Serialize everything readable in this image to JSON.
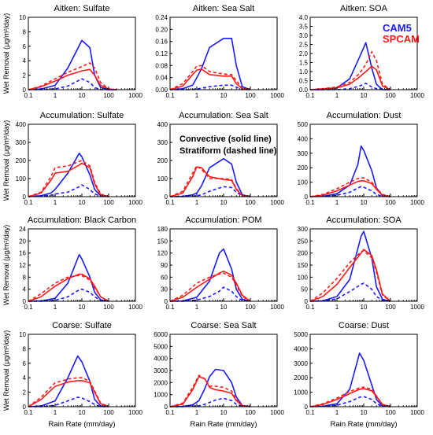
{
  "figure": {
    "ylabel": "Wet Removal (μg/m²/day)",
    "xlabel": "Rain Rate (mm/day)",
    "legend": {
      "cam5": "CAM5",
      "spcam": "SPCAM"
    },
    "note": {
      "line1": "Convective (solid line)",
      "line2": "Stratiform (dashed line)"
    },
    "colors": {
      "cam5": "#1a1aff",
      "spcam": "#ff1a1a"
    },
    "x_ticks": [
      "0.1",
      "1",
      "10",
      "100",
      "1000"
    ]
  },
  "chart_data": [
    {
      "type": "line",
      "title": "Aitken: Sulfate",
      "xscale": "log",
      "xlim": [
        0.1,
        1000
      ],
      "ylim": [
        0,
        10
      ],
      "y_ticks": [
        "0",
        "2",
        "4",
        "6",
        "8",
        "10"
      ],
      "x": [
        0.1,
        0.3,
        1,
        3,
        10,
        20,
        30,
        50,
        100,
        200
      ],
      "series": [
        {
          "name": "CAM5",
          "style": "solid",
          "values": [
            0,
            0.1,
            0.6,
            3.0,
            6.8,
            5.8,
            2.0,
            0.3,
            0,
            0
          ]
        },
        {
          "name": "CAM5",
          "style": "dashed",
          "values": [
            0,
            0,
            0.1,
            0.5,
            1.5,
            1.0,
            0.3,
            0,
            0,
            0
          ]
        },
        {
          "name": "SPCAM",
          "style": "solid",
          "values": [
            0,
            0.4,
            1.2,
            2.0,
            2.6,
            2.8,
            2.0,
            0.6,
            0.1,
            0
          ]
        },
        {
          "name": "SPCAM",
          "style": "dashed",
          "values": [
            0,
            0.5,
            1.5,
            2.4,
            3.2,
            3.7,
            3.0,
            1.0,
            0.1,
            0
          ]
        }
      ]
    },
    {
      "type": "line",
      "title": "Aitken: Sea Salt",
      "xscale": "log",
      "xlim": [
        0.1,
        1000
      ],
      "ylim": [
        0,
        0.24
      ],
      "y_ticks": [
        "0.00",
        "0.04",
        "0.08",
        "0.12",
        "0.16",
        "0.20",
        "0.24"
      ],
      "x": [
        0.1,
        0.3,
        0.7,
        1,
        1.5,
        3,
        10,
        20,
        30,
        50,
        100
      ],
      "series": [
        {
          "name": "CAM5",
          "style": "solid",
          "values": [
            0,
            0.003,
            0.015,
            0.04,
            0.07,
            0.14,
            0.17,
            0.17,
            0.08,
            0.01,
            0
          ]
        },
        {
          "name": "CAM5",
          "style": "dashed",
          "values": [
            0,
            0,
            0,
            0.002,
            0.005,
            0.01,
            0.015,
            0.015,
            0.008,
            0,
            0
          ]
        },
        {
          "name": "SPCAM",
          "style": "solid",
          "values": [
            0,
            0.012,
            0.05,
            0.065,
            0.068,
            0.05,
            0.045,
            0.045,
            0.02,
            0.003,
            0
          ]
        },
        {
          "name": "SPCAM",
          "style": "dashed",
          "values": [
            0,
            0.02,
            0.06,
            0.078,
            0.08,
            0.06,
            0.052,
            0.05,
            0.03,
            0.005,
            0
          ]
        }
      ]
    },
    {
      "type": "line",
      "title": "Aitken: SOA",
      "xscale": "log",
      "xlim": [
        0.1,
        1000
      ],
      "ylim": [
        0,
        4.0
      ],
      "y_ticks": [
        "0.0",
        "0.5",
        "1.0",
        "1.5",
        "2.0",
        "2.5",
        "3.0",
        "3.5",
        "4.0"
      ],
      "x": [
        0.1,
        0.3,
        1,
        3,
        7,
        12,
        20,
        30,
        50,
        100
      ],
      "series": [
        {
          "name": "CAM5",
          "style": "solid",
          "values": [
            0,
            0,
            0.1,
            0.6,
            1.8,
            2.6,
            1.2,
            0.3,
            0,
            0
          ]
        },
        {
          "name": "CAM5",
          "style": "dashed",
          "values": [
            0,
            0,
            0,
            0.05,
            0.2,
            0.35,
            0.15,
            0.05,
            0,
            0
          ]
        },
        {
          "name": "SPCAM",
          "style": "solid",
          "values": [
            0,
            0.05,
            0.1,
            0.3,
            0.7,
            1.0,
            1.3,
            1.1,
            0.2,
            0
          ]
        },
        {
          "name": "SPCAM",
          "style": "dashed",
          "values": [
            0,
            0.05,
            0.15,
            0.4,
            0.9,
            1.4,
            2.1,
            1.6,
            0.3,
            0
          ]
        }
      ]
    },
    {
      "type": "line",
      "title": "Accumulation: Sulfate",
      "xscale": "log",
      "xlim": [
        0.1,
        1000
      ],
      "ylim": [
        0,
        400
      ],
      "y_ticks": [
        "0",
        "100",
        "200",
        "300",
        "400"
      ],
      "x": [
        0.1,
        0.3,
        0.7,
        1,
        3,
        8,
        10,
        20,
        30,
        50,
        100
      ],
      "series": [
        {
          "name": "CAM5",
          "style": "solid",
          "values": [
            0,
            5,
            20,
            40,
            130,
            240,
            220,
            120,
            40,
            5,
            0
          ]
        },
        {
          "name": "CAM5",
          "style": "dashed",
          "values": [
            0,
            2,
            8,
            15,
            25,
            55,
            65,
            40,
            15,
            3,
            0
          ]
        },
        {
          "name": "SPCAM",
          "style": "solid",
          "values": [
            0,
            20,
            90,
            130,
            140,
            175,
            185,
            160,
            70,
            10,
            0
          ]
        },
        {
          "name": "SPCAM",
          "style": "dashed",
          "values": [
            0,
            25,
            110,
            160,
            170,
            195,
            200,
            170,
            80,
            15,
            0
          ]
        }
      ]
    },
    {
      "type": "line",
      "title": "Accumulation: Sea Salt",
      "xscale": "log",
      "xlim": [
        0.1,
        1000
      ],
      "ylim": [
        0,
        400
      ],
      "y_ticks": [
        "0",
        "100",
        "200",
        "300",
        "400"
      ],
      "x": [
        0.1,
        0.3,
        0.7,
        1,
        1.5,
        3,
        10,
        20,
        30,
        50,
        100
      ],
      "series": [
        {
          "name": "CAM5",
          "style": "solid",
          "values": [
            0,
            2,
            10,
            20,
            60,
            160,
            210,
            180,
            80,
            10,
            0
          ]
        },
        {
          "name": "CAM5",
          "style": "dashed",
          "values": [
            0,
            0,
            2,
            5,
            10,
            30,
            55,
            50,
            25,
            5,
            0
          ]
        },
        {
          "name": "SPCAM",
          "style": "solid",
          "values": [
            0,
            20,
            110,
            165,
            160,
            110,
            95,
            90,
            40,
            5,
            0
          ]
        },
        {
          "name": "SPCAM",
          "style": "dashed",
          "values": [
            0,
            30,
            130,
            170,
            150,
            100,
            100,
            95,
            45,
            5,
            0
          ]
        }
      ]
    },
    {
      "type": "line",
      "title": "Accumulation: Dust",
      "xscale": "log",
      "xlim": [
        0.1,
        1000
      ],
      "ylim": [
        0,
        500
      ],
      "y_ticks": [
        "0",
        "100",
        "200",
        "300",
        "400",
        "500"
      ],
      "x": [
        0.1,
        0.3,
        1,
        3,
        6,
        8,
        10,
        20,
        30,
        50,
        100
      ],
      "series": [
        {
          "name": "CAM5",
          "style": "solid",
          "values": [
            0,
            2,
            20,
            80,
            220,
            350,
            320,
            180,
            60,
            5,
            0
          ]
        },
        {
          "name": "CAM5",
          "style": "dashed",
          "values": [
            0,
            2,
            10,
            30,
            60,
            70,
            65,
            40,
            15,
            2,
            0
          ]
        },
        {
          "name": "SPCAM",
          "style": "solid",
          "values": [
            0,
            10,
            40,
            80,
            105,
            110,
            110,
            90,
            50,
            10,
            0
          ]
        },
        {
          "name": "SPCAM",
          "style": "dashed",
          "values": [
            0,
            15,
            55,
            100,
            125,
            130,
            130,
            100,
            60,
            15,
            0
          ]
        }
      ]
    },
    {
      "type": "line",
      "title": "Accumulation: Black Carbon",
      "xscale": "log",
      "xlim": [
        0.1,
        1000
      ],
      "ylim": [
        0,
        24
      ],
      "y_ticks": [
        "0",
        "4",
        "8",
        "12",
        "16",
        "20",
        "24"
      ],
      "x": [
        0.1,
        0.3,
        1,
        3,
        8,
        10,
        20,
        30,
        50,
        100
      ],
      "series": [
        {
          "name": "CAM5",
          "style": "solid",
          "values": [
            0,
            0.1,
            1.0,
            6.0,
            15.5,
            14.0,
            8.0,
            3.0,
            0.5,
            0
          ]
        },
        {
          "name": "CAM5",
          "style": "dashed",
          "values": [
            0,
            0,
            0.3,
            1.5,
            3.8,
            4.0,
            3.0,
            1.5,
            0.3,
            0
          ]
        },
        {
          "name": "SPCAM",
          "style": "solid",
          "values": [
            0,
            1.5,
            5.0,
            7.5,
            9.0,
            9.0,
            7.5,
            5.0,
            1.5,
            0
          ]
        },
        {
          "name": "SPCAM",
          "style": "dashed",
          "values": [
            0,
            2.5,
            6.0,
            8.0,
            8.6,
            8.5,
            7.0,
            4.5,
            1.5,
            0
          ]
        }
      ]
    },
    {
      "type": "line",
      "title": "Accumulation: POM",
      "xscale": "log",
      "xlim": [
        0.1,
        1000
      ],
      "ylim": [
        0,
        180
      ],
      "y_ticks": [
        "0",
        "30",
        "60",
        "90",
        "120",
        "150",
        "180"
      ],
      "x": [
        0.1,
        0.3,
        1,
        3,
        7,
        10,
        20,
        30,
        50,
        100
      ],
      "series": [
        {
          "name": "CAM5",
          "style": "solid",
          "values": [
            0,
            1,
            10,
            50,
            120,
            130,
            80,
            30,
            5,
            0
          ]
        },
        {
          "name": "CAM5",
          "style": "dashed",
          "values": [
            0,
            0,
            3,
            12,
            25,
            35,
            25,
            12,
            2,
            0
          ]
        },
        {
          "name": "SPCAM",
          "style": "solid",
          "values": [
            0,
            10,
            35,
            55,
            70,
            75,
            65,
            45,
            15,
            0
          ]
        },
        {
          "name": "SPCAM",
          "style": "dashed",
          "values": [
            0,
            15,
            45,
            60,
            68,
            70,
            60,
            40,
            12,
            0
          ]
        }
      ]
    },
    {
      "type": "line",
      "title": "Accumulation: SOA",
      "xscale": "log",
      "xlim": [
        0.1,
        1000
      ],
      "ylim": [
        0,
        300
      ],
      "y_ticks": [
        "0",
        "50",
        "100",
        "150",
        "200",
        "250",
        "300"
      ],
      "x": [
        0.1,
        0.3,
        1,
        3,
        8,
        10,
        20,
        30,
        50,
        100
      ],
      "series": [
        {
          "name": "CAM5",
          "style": "solid",
          "values": [
            0,
            2,
            20,
            90,
            270,
            290,
            180,
            60,
            8,
            0
          ]
        },
        {
          "name": "CAM5",
          "style": "dashed",
          "values": [
            0,
            1,
            10,
            40,
            70,
            75,
            50,
            20,
            3,
            0
          ]
        },
        {
          "name": "SPCAM",
          "style": "solid",
          "values": [
            0,
            20,
            70,
            140,
            200,
            215,
            190,
            130,
            30,
            0
          ]
        },
        {
          "name": "SPCAM",
          "style": "dashed",
          "values": [
            0,
            35,
            95,
            160,
            205,
            210,
            180,
            120,
            25,
            0
          ]
        }
      ]
    },
    {
      "type": "line",
      "title": "Coarse: Sulfate",
      "xscale": "log",
      "xlim": [
        0.1,
        1000
      ],
      "ylim": [
        0,
        10
      ],
      "y_ticks": [
        "0",
        "2",
        "4",
        "6",
        "8",
        "10"
      ],
      "x": [
        0.1,
        0.3,
        1,
        3,
        7,
        10,
        20,
        30,
        50,
        100
      ],
      "series": [
        {
          "name": "CAM5",
          "style": "solid",
          "values": [
            0,
            0.1,
            0.8,
            4.0,
            7.0,
            6.2,
            3.5,
            1.0,
            0.1,
            0
          ]
        },
        {
          "name": "CAM5",
          "style": "dashed",
          "values": [
            0,
            0,
            0.2,
            0.8,
            1.3,
            1.2,
            0.7,
            0.3,
            0,
            0
          ]
        },
        {
          "name": "SPCAM",
          "style": "solid",
          "values": [
            0,
            1.0,
            2.8,
            3.4,
            3.6,
            3.6,
            3.3,
            2.0,
            0.4,
            0
          ]
        },
        {
          "name": "SPCAM",
          "style": "dashed",
          "values": [
            0,
            1.3,
            3.3,
            3.8,
            4.0,
            4.0,
            3.5,
            2.2,
            0.5,
            0
          ]
        }
      ]
    },
    {
      "type": "line",
      "title": "Coarse: Sea Salt",
      "xscale": "log",
      "xlim": [
        0.1,
        1000
      ],
      "ylim": [
        0,
        6000
      ],
      "y_ticks": [
        "0",
        "1000",
        "2000",
        "3000",
        "4000",
        "5000",
        "6000"
      ],
      "x": [
        0.1,
        0.3,
        0.7,
        1.2,
        2,
        3,
        5,
        10,
        20,
        30,
        50,
        100
      ],
      "series": [
        {
          "name": "CAM5",
          "style": "solid",
          "values": [
            0,
            20,
            150,
            500,
            1500,
            2500,
            3100,
            3000,
            2000,
            800,
            100,
            0
          ]
        },
        {
          "name": "CAM5",
          "style": "dashed",
          "values": [
            0,
            5,
            30,
            80,
            200,
            350,
            550,
            700,
            500,
            200,
            30,
            0
          ]
        },
        {
          "name": "SPCAM",
          "style": "solid",
          "values": [
            0,
            200,
            1400,
            2500,
            2300,
            1600,
            1400,
            1300,
            1100,
            500,
            80,
            0
          ]
        },
        {
          "name": "SPCAM",
          "style": "dashed",
          "values": [
            0,
            300,
            1600,
            2600,
            2300,
            1700,
            1700,
            1600,
            1300,
            600,
            100,
            0
          ]
        }
      ]
    },
    {
      "type": "line",
      "title": "Coarse: Dust",
      "xscale": "log",
      "xlim": [
        0.1,
        1000
      ],
      "ylim": [
        0,
        5000
      ],
      "y_ticks": [
        "0",
        "1000",
        "2000",
        "3000",
        "4000",
        "5000"
      ],
      "x": [
        0.1,
        0.3,
        1,
        3,
        7,
        10,
        20,
        30,
        50,
        100
      ],
      "series": [
        {
          "name": "CAM5",
          "style": "solid",
          "values": [
            0,
            30,
            200,
            1200,
            3700,
            3200,
            1500,
            500,
            50,
            0
          ]
        },
        {
          "name": "CAM5",
          "style": "dashed",
          "values": [
            0,
            20,
            100,
            350,
            650,
            700,
            500,
            200,
            30,
            0
          ]
        },
        {
          "name": "SPCAM",
          "style": "solid",
          "values": [
            0,
            150,
            500,
            900,
            1200,
            1250,
            1100,
            700,
            150,
            0
          ]
        },
        {
          "name": "SPCAM",
          "style": "dashed",
          "values": [
            0,
            200,
            600,
            1050,
            1300,
            1350,
            1200,
            750,
            150,
            0
          ]
        }
      ]
    }
  ]
}
